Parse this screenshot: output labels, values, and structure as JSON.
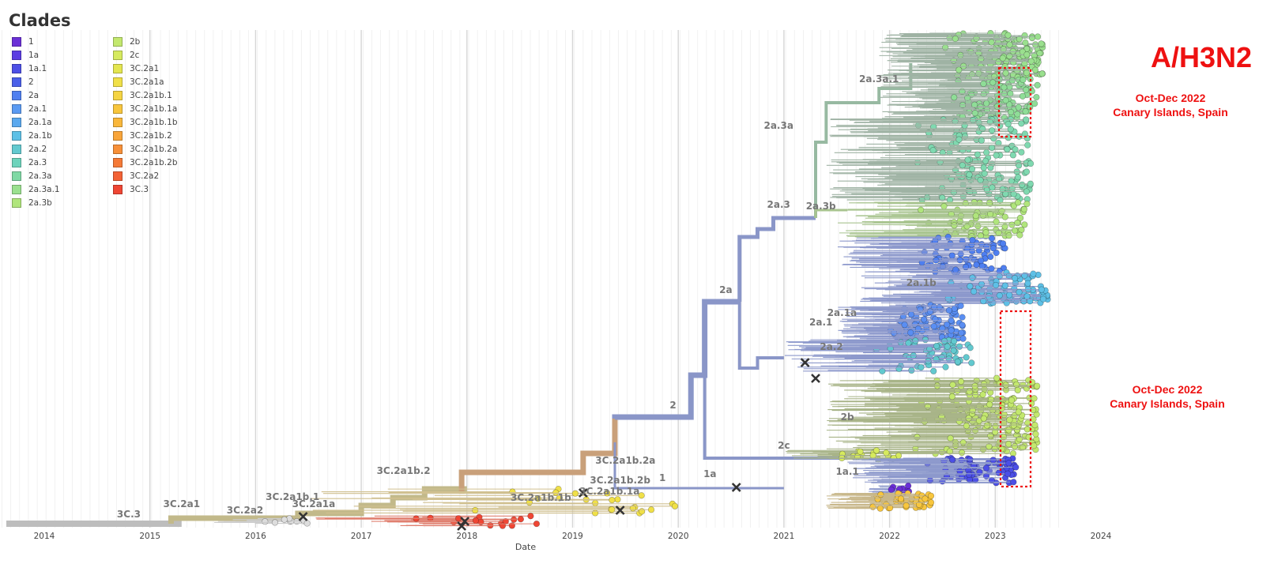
{
  "legend": {
    "title": "Clades",
    "columns": [
      [
        {
          "label": "1",
          "color": "#6a2fd6"
        },
        {
          "label": "1a",
          "color": "#5b3ce2"
        },
        {
          "label": "1a.1",
          "color": "#4c4fe6"
        },
        {
          "label": "2",
          "color": "#4a5fe8"
        },
        {
          "label": "2a",
          "color": "#4f7ff0"
        },
        {
          "label": "2a.1",
          "color": "#5a9af2"
        },
        {
          "label": "2a.1a",
          "color": "#5aa8ee"
        },
        {
          "label": "2a.1b",
          "color": "#5ec0e6"
        },
        {
          "label": "2a.2",
          "color": "#62c9cf"
        },
        {
          "label": "2a.3",
          "color": "#6dd3bb"
        },
        {
          "label": "2a.3a",
          "color": "#7fd9a4"
        },
        {
          "label": "2a.3a.1",
          "color": "#9ae08e"
        },
        {
          "label": "2a.3b",
          "color": "#b0e57c"
        }
      ],
      [
        {
          "label": "2b",
          "color": "#c3e86e"
        },
        {
          "label": "2c",
          "color": "#d6ea5e"
        },
        {
          "label": "3C.2a1",
          "color": "#e4e650"
        },
        {
          "label": "3C.2a1a",
          "color": "#f0e048"
        },
        {
          "label": "3C.2a1b.1",
          "color": "#f5d442"
        },
        {
          "label": "3C.2a1b.1a",
          "color": "#f8c63d"
        },
        {
          "label": "3C.2a1b.1b",
          "color": "#f9b73b"
        },
        {
          "label": "3C.2a1b.2",
          "color": "#f9a53a"
        },
        {
          "label": "3C.2a1b.2a",
          "color": "#f79039"
        },
        {
          "label": "3C.2a1b.2b",
          "color": "#f57a37"
        },
        {
          "label": "3C.2a2",
          "color": "#f36236"
        },
        {
          "label": "3C.3",
          "color": "#ef4634"
        }
      ]
    ]
  },
  "figure": {
    "title": "A/H3N2",
    "annotations": [
      {
        "line1": "Oct-Dec 2022",
        "line2": "Canary Islands, Spain"
      },
      {
        "line1": "Oct-Dec 2022",
        "line2": "Canary Islands, Spain"
      }
    ]
  },
  "axis": {
    "label": "Date",
    "ticks": [
      "2014",
      "2015",
      "2016",
      "2017",
      "2018",
      "2019",
      "2020",
      "2021",
      "2022",
      "2023",
      "2024"
    ]
  },
  "clade_labels": [
    {
      "label": "3C.3",
      "year": 2014.8,
      "row": 655
    },
    {
      "label": "3C.2a1",
      "year": 2015.3,
      "row": 642
    },
    {
      "label": "3C.2a2",
      "year": 2015.9,
      "row": 650
    },
    {
      "label": "3C.2a1b.1",
      "year": 2016.35,
      "row": 633
    },
    {
      "label": "3C.2a1a",
      "year": 2016.55,
      "row": 642
    },
    {
      "label": "3C.2a1b.2",
      "year": 2017.4,
      "row": 600
    },
    {
      "label": "3C.2a1b.2a",
      "year": 2019.5,
      "row": 587
    },
    {
      "label": "3C.2a1b.2b",
      "year": 2019.45,
      "row": 612
    },
    {
      "label": "3C.2a1b.1a",
      "year": 2019.35,
      "row": 626
    },
    {
      "label": "3C.2a1b.1b",
      "year": 2018.7,
      "row": 634
    },
    {
      "label": "1",
      "year": 2019.85,
      "row": 609
    },
    {
      "label": "1a",
      "year": 2020.3,
      "row": 604
    },
    {
      "label": "2",
      "year": 2019.95,
      "row": 517
    },
    {
      "label": "2a",
      "year": 2020.45,
      "row": 371
    },
    {
      "label": "2a.1",
      "year": 2021.35,
      "row": 412
    },
    {
      "label": "2a.1a",
      "year": 2021.55,
      "row": 400
    },
    {
      "label": "2a.1b",
      "year": 2022.3,
      "row": 362
    },
    {
      "label": "2a.2",
      "year": 2021.45,
      "row": 443
    },
    {
      "label": "2a.3",
      "year": 2020.95,
      "row": 263
    },
    {
      "label": "2a.3b",
      "year": 2021.35,
      "row": 265
    },
    {
      "label": "2a.3a",
      "year": 2020.95,
      "row": 163
    },
    {
      "label": "2a.3a.1",
      "year": 2021.9,
      "row": 104
    },
    {
      "label": "2b",
      "year": 2021.6,
      "row": 532
    },
    {
      "label": "2c",
      "year": 2021.0,
      "row": 568
    },
    {
      "label": "1a.1",
      "year": 2021.6,
      "row": 601
    }
  ]
}
